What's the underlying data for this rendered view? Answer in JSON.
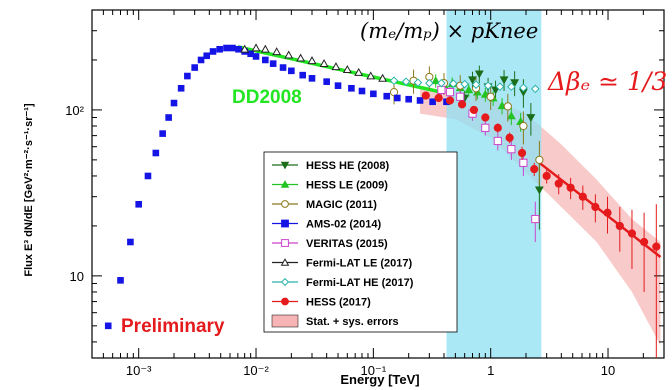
{
  "chart_data": {
    "type": "scatter",
    "xlabel": "Energy [TeV]",
    "ylabel": "Flux E³ dN/dE [GeV²·m⁻²·s⁻¹·sr⁻¹]",
    "xscale": "log",
    "yscale": "log",
    "xlim": [
      0.0004,
      30
    ],
    "ylim": [
      3.2,
      400
    ],
    "x_tick_labels": [
      "10⁻³",
      "10⁻²",
      "10⁻¹",
      "1",
      "10"
    ],
    "x_ticks": [
      0.001,
      0.01,
      0.1,
      1,
      10
    ],
    "y_tick_labels": [
      "10",
      "10²"
    ],
    "y_ticks": [
      10,
      100
    ],
    "grid": false,
    "legend_position": "bottom-right",
    "annotations": {
      "dd2008": "DD2008",
      "knee_label": "(mₑ/mₚ) × pKnee",
      "delta_beta": "Δβₑ ≃ 1/3",
      "preliminary": "Preliminary"
    },
    "colors": {
      "hess_he": "#1a6e1a",
      "hess_le": "#22c422",
      "magic": "#8a7a1c",
      "ams02": "#1414e6",
      "veritas": "#cc44cc",
      "fermi_le": "#222222",
      "fermi_he": "#2ab3a8",
      "hess2017": "#e41a1c",
      "band_red": "#f7b4b4",
      "band_cyan": "#8fe0f3",
      "dd2008_line": "#22e622"
    },
    "cyan_band_x": [
      0.42,
      2.7
    ],
    "series": [
      {
        "name": "HESS HE (2008)",
        "marker": "tri-down",
        "color": "#1a6e1a",
        "x": [
          0.6,
          0.7,
          0.8,
          0.95,
          1.1,
          1.3,
          1.6,
          1.9,
          2.2,
          2.6
        ],
        "y": [
          118,
          152,
          165,
          138,
          132,
          152,
          146,
          128,
          90,
          33
        ],
        "err": [
          12,
          18,
          20,
          18,
          18,
          22,
          25,
          25,
          20,
          14
        ]
      },
      {
        "name": "HESS LE (2009)",
        "marker": "tri-up",
        "color": "#22c422",
        "x": [
          0.34,
          0.4,
          0.47,
          0.55,
          0.65,
          0.77,
          0.9,
          1.05,
          1.25,
          1.5,
          1.8
        ],
        "y": [
          150,
          142,
          144,
          136,
          132,
          128,
          124,
          118,
          106,
          92,
          85
        ],
        "err": [
          14,
          13,
          13,
          12,
          12,
          12,
          12,
          12,
          12,
          11,
          11
        ]
      },
      {
        "name": "MAGIC (2011)",
        "marker": "circle-open",
        "color": "#8a7a1c",
        "x": [
          0.15,
          0.22,
          0.3,
          0.4,
          0.55,
          0.75,
          1.0,
          1.4,
          1.9,
          2.6
        ],
        "y": [
          128,
          150,
          158,
          145,
          140,
          135,
          120,
          105,
          80,
          50
        ],
        "err": [
          20,
          25,
          25,
          22,
          22,
          22,
          20,
          20,
          18,
          15
        ]
      },
      {
        "name": "AMS-02 (2014)",
        "marker": "square",
        "color": "#1414e6",
        "x": [
          0.00055,
          0.0007,
          0.00085,
          0.001,
          0.0012,
          0.0014,
          0.0016,
          0.0018,
          0.002,
          0.0023,
          0.0026,
          0.003,
          0.0034,
          0.0038,
          0.0043,
          0.0049,
          0.0056,
          0.0063,
          0.0071,
          0.008,
          0.009,
          0.01,
          0.012,
          0.014,
          0.017,
          0.02,
          0.025,
          0.03,
          0.04,
          0.05,
          0.065,
          0.08,
          0.1,
          0.13,
          0.16,
          0.2,
          0.25,
          0.32,
          0.42
        ],
        "y": [
          5,
          9.4,
          16,
          27,
          40,
          55,
          72,
          90,
          110,
          135,
          160,
          180,
          200,
          212,
          225,
          232,
          236,
          236,
          232,
          225,
          218,
          210,
          200,
          190,
          180,
          172,
          162,
          155,
          148,
          140,
          135,
          130,
          125,
          121,
          118,
          116,
          114,
          112,
          112
        ]
      },
      {
        "name": "VERITAS (2015)",
        "marker": "square-open",
        "color": "#cc44cc",
        "x": [
          0.38,
          0.45,
          0.55,
          0.7,
          0.9,
          1.15,
          1.5,
          1.9,
          2.4
        ],
        "y": [
          132,
          128,
          120,
          95,
          78,
          65,
          58,
          48,
          22
        ],
        "err": [
          10,
          10,
          10,
          9,
          8,
          8,
          8,
          8,
          6
        ]
      },
      {
        "name": "Fermi-LAT LE (2017)",
        "marker": "tri-up-open",
        "color": "#222222",
        "x": [
          0.008,
          0.01,
          0.012,
          0.015,
          0.019,
          0.024,
          0.03,
          0.038,
          0.048,
          0.06,
          0.075,
          0.095,
          0.12
        ],
        "y": [
          232,
          236,
          232,
          224,
          214,
          205,
          198,
          190,
          182,
          175,
          168,
          160,
          155
        ]
      },
      {
        "name": "Fermi-LAT HE (2017)",
        "marker": "diamond-open",
        "color": "#2ab3a8",
        "x": [
          0.15,
          0.19,
          0.24,
          0.3,
          0.38,
          0.48,
          0.6,
          0.75,
          0.95,
          1.2,
          1.5,
          1.9,
          2.4
        ],
        "y": [
          150,
          148,
          146,
          145,
          145,
          144,
          143,
          142,
          140,
          138,
          138,
          136,
          134
        ]
      },
      {
        "name": "HESS (2017)",
        "marker": "circle",
        "color": "#e41a1c",
        "x": [
          0.28,
          0.36,
          0.45,
          0.57,
          0.72,
          0.9,
          1.15,
          1.45,
          1.85,
          2.35,
          3.0,
          3.8,
          4.8,
          6.1,
          7.8,
          9.9,
          12.6,
          16.0,
          20.3,
          25.8
        ],
        "y": [
          122,
          118,
          114,
          108,
          100,
          90,
          78,
          68,
          55,
          44,
          40,
          36,
          34,
          30,
          26,
          24,
          20,
          18,
          16,
          15
        ],
        "err": [
          6,
          6,
          5,
          5,
          5,
          5,
          5,
          5,
          5,
          4,
          4,
          5,
          5,
          5,
          5,
          6,
          6,
          7,
          8,
          12
        ]
      }
    ],
    "dd2008_line": {
      "x": [
        0.007,
        0.38
      ],
      "y": [
        240,
        128
      ]
    },
    "hess2017_fit": {
      "x": [
        2.6,
        28
      ],
      "y": [
        48,
        13
      ]
    },
    "stat_sys_band": {
      "x": [
        0.25,
        0.5,
        1.0,
        2.0,
        4.0,
        8.0,
        16.0,
        28.0
      ],
      "y_low": [
        95,
        88,
        68,
        42,
        26,
        16,
        8,
        3.8
      ],
      "y_high": [
        135,
        128,
        118,
        95,
        62,
        38,
        22,
        16
      ]
    }
  }
}
